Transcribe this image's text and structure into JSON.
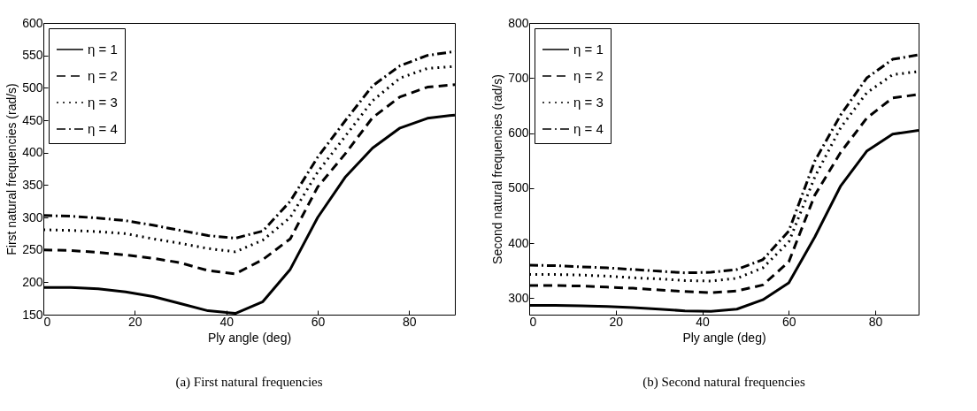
{
  "chart_data": [
    {
      "type": "line",
      "title": "(a) First natural frequencies",
      "xlabel": "Ply angle (deg)",
      "ylabel": "First natural frequencies (rad/s)",
      "x": [
        0,
        6,
        12,
        18,
        24,
        30,
        36,
        42,
        48,
        54,
        60,
        66,
        72,
        78,
        84,
        90
      ],
      "series": [
        {
          "name": "η = 1",
          "color": "#000000",
          "line_style": "solid",
          "values": [
            192,
            192,
            190,
            185,
            178,
            167,
            156,
            152,
            170,
            220,
            300,
            362,
            407,
            438,
            453,
            458
          ]
        },
        {
          "name": "η = 2",
          "color": "#000000",
          "line_style": "dashed",
          "values": [
            250,
            249,
            246,
            242,
            237,
            230,
            218,
            213,
            235,
            267,
            347,
            398,
            454,
            486,
            501,
            505
          ]
        },
        {
          "name": "η = 3",
          "color": "#000000",
          "line_style": "dotted",
          "values": [
            281,
            280,
            278,
            275,
            267,
            260,
            252,
            247,
            265,
            300,
            370,
            425,
            480,
            515,
            530,
            533
          ]
        },
        {
          "name": "η = 4",
          "color": "#000000",
          "line_style": "dashdot",
          "values": [
            303,
            302,
            299,
            295,
            288,
            280,
            272,
            268,
            279,
            325,
            393,
            449,
            503,
            534,
            550,
            556
          ]
        }
      ],
      "xlim": [
        0,
        90
      ],
      "xticks": [
        0,
        20,
        40,
        60,
        80
      ],
      "ylim": [
        150,
        600
      ],
      "yticks": [
        150,
        200,
        250,
        300,
        350,
        400,
        450,
        500,
        550,
        600
      ],
      "grid": false,
      "legend": "top left"
    },
    {
      "type": "line",
      "title": "(b) Second natural frequencies",
      "xlabel": "Ply angle (deg)",
      "ylabel": "Second natural frequencies (rad/s)",
      "x": [
        0,
        6,
        12,
        18,
        24,
        30,
        36,
        42,
        48,
        54,
        60,
        66,
        72,
        78,
        84,
        90
      ],
      "series": [
        {
          "name": "η = 1",
          "color": "#000000",
          "line_style": "solid",
          "values": [
            287,
            287,
            286,
            285,
            283,
            280,
            277,
            276,
            280,
            297,
            328,
            411,
            504,
            567,
            598,
            605
          ]
        },
        {
          "name": "η = 2",
          "color": "#000000",
          "line_style": "dashed",
          "values": [
            323,
            323,
            322,
            320,
            318,
            315,
            312,
            310,
            313,
            324,
            366,
            487,
            565,
            627,
            664,
            670
          ]
        },
        {
          "name": "η = 3",
          "color": "#000000",
          "line_style": "dotted",
          "values": [
            343,
            343,
            342,
            340,
            337,
            335,
            332,
            331,
            336,
            355,
            402,
            520,
            610,
            673,
            706,
            712
          ]
        },
        {
          "name": "η = 4",
          "color": "#000000",
          "line_style": "dashdot",
          "values": [
            360,
            359,
            357,
            355,
            352,
            349,
            346,
            347,
            352,
            370,
            422,
            549,
            633,
            700,
            734,
            742
          ]
        }
      ],
      "xlim": [
        0,
        90
      ],
      "xticks": [
        0,
        20,
        40,
        60,
        80
      ],
      "ylim": [
        270,
        800
      ],
      "yticks": [
        300,
        400,
        500,
        600,
        700,
        800
      ],
      "grid": false,
      "legend": "top left"
    }
  ]
}
